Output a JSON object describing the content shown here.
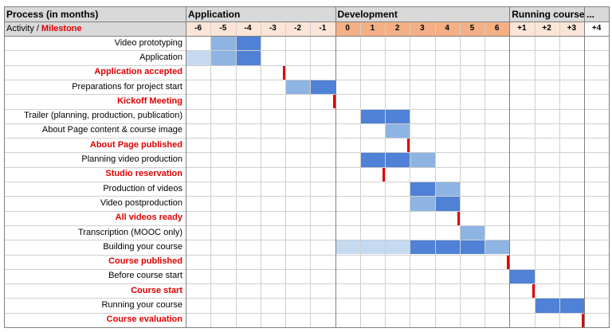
{
  "header": {
    "title": "Process (in months)",
    "activity": "Activity",
    "separator": "/",
    "milestone": "Milestone"
  },
  "phases": [
    "Application",
    "Development",
    "Running course",
    "..."
  ],
  "months": [
    "-6",
    "-5",
    "-4",
    "-3",
    "-2",
    "-1",
    "0",
    "1",
    "2",
    "3",
    "4",
    "5",
    "6",
    "+1",
    "+2",
    "+3",
    "+4"
  ],
  "rows": [
    "Video prototyping",
    "Application",
    "Application accepted",
    "Preparations for project start",
    "Kickoff Meeting",
    "Trailer (planning, production, publication)",
    "About Page content & course image",
    "About Page published",
    "Planning video production",
    "Studio reservation",
    "Production of videos",
    "Video postproduction",
    "All videos ready",
    "Transcription (MOOC only)",
    "Building your course",
    "Course published",
    "Before course start",
    "Course start",
    "Running your course",
    "Course evaluation"
  ]
}
